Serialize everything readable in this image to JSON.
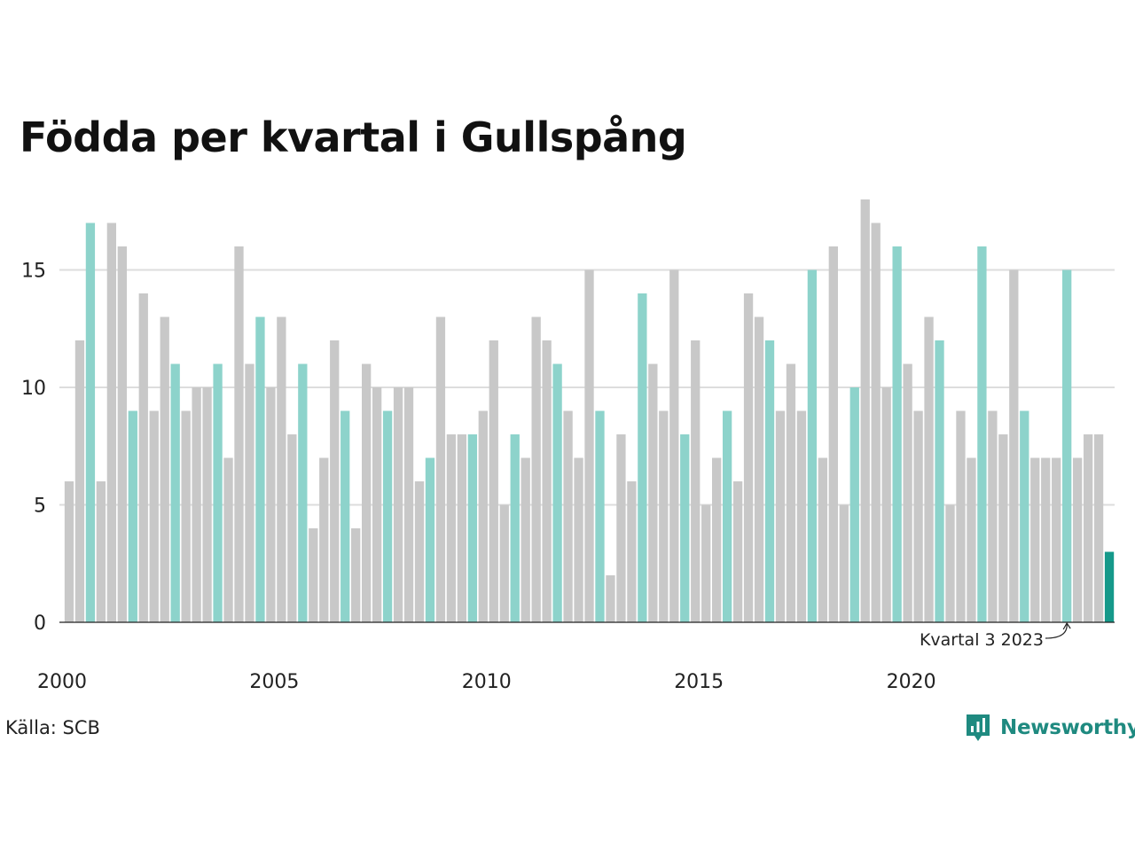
{
  "title": "Födda per kvartal i Gullspång",
  "source": "Källa: SCB",
  "brand": "Newsworthy",
  "colors": {
    "bar_default": "#c8c8c8",
    "bar_highlight": "#8dd3cb",
    "bar_latest": "#15998a",
    "grid": "#dddddd",
    "brand": "#1f8a80"
  },
  "chart_data": {
    "type": "bar",
    "ylim": [
      0,
      18
    ],
    "yticks": [
      0,
      5,
      10,
      15
    ],
    "xtick_labels": [
      "2000",
      "2005",
      "2010",
      "2015",
      "2020"
    ],
    "annotation": "Kvartal 3 2023",
    "highlight": "Kvartal 3 varje år",
    "categories": [
      "2000 Q1",
      "2000 Q2",
      "2000 Q3",
      "2000 Q4",
      "2001 Q1",
      "2001 Q2",
      "2001 Q3",
      "2001 Q4",
      "2002 Q1",
      "2002 Q2",
      "2002 Q3",
      "2002 Q4",
      "2003 Q1",
      "2003 Q2",
      "2003 Q3",
      "2003 Q4",
      "2004 Q1",
      "2004 Q2",
      "2004 Q3",
      "2004 Q4",
      "2005 Q1",
      "2005 Q2",
      "2005 Q3",
      "2005 Q4",
      "2006 Q1",
      "2006 Q2",
      "2006 Q3",
      "2006 Q4",
      "2007 Q1",
      "2007 Q2",
      "2007 Q3",
      "2007 Q4",
      "2008 Q1",
      "2008 Q2",
      "2008 Q3",
      "2008 Q4",
      "2009 Q1",
      "2009 Q2",
      "2009 Q3",
      "2009 Q4",
      "2010 Q1",
      "2010 Q2",
      "2010 Q3",
      "2010 Q4",
      "2011 Q1",
      "2011 Q2",
      "2011 Q3",
      "2011 Q4",
      "2012 Q1",
      "2012 Q2",
      "2012 Q3",
      "2012 Q4",
      "2013 Q1",
      "2013 Q2",
      "2013 Q3",
      "2013 Q4",
      "2014 Q1",
      "2014 Q2",
      "2014 Q3",
      "2014 Q4",
      "2015 Q1",
      "2015 Q2",
      "2015 Q3",
      "2015 Q4",
      "2016 Q1",
      "2016 Q2",
      "2016 Q3",
      "2016 Q4",
      "2017 Q1",
      "2017 Q2",
      "2017 Q3",
      "2017 Q4",
      "2018 Q1",
      "2018 Q2",
      "2018 Q3",
      "2018 Q4",
      "2019 Q1",
      "2019 Q2",
      "2019 Q3",
      "2019 Q4",
      "2020 Q1",
      "2020 Q2",
      "2020 Q3",
      "2020 Q4",
      "2021 Q1",
      "2021 Q2",
      "2021 Q3",
      "2021 Q4",
      "2022 Q1",
      "2022 Q2",
      "2022 Q3",
      "2022 Q4",
      "2023 Q1",
      "2023 Q2",
      "2023 Q3",
      "2023 Q4",
      "2024 Q1",
      "2024 Q2",
      "2024 Q3"
    ],
    "values": [
      6,
      12,
      17,
      6,
      17,
      16,
      9,
      14,
      9,
      13,
      11,
      9,
      10,
      10,
      11,
      7,
      16,
      11,
      13,
      10,
      13,
      8,
      11,
      4,
      7,
      12,
      9,
      4,
      11,
      10,
      9,
      10,
      10,
      6,
      7,
      13,
      8,
      8,
      8,
      9,
      12,
      5,
      8,
      7,
      13,
      12,
      11,
      9,
      7,
      15,
      9,
      2,
      8,
      6,
      14,
      11,
      9,
      15,
      8,
      12,
      5,
      7,
      9,
      6,
      14,
      13,
      12,
      9,
      11,
      9,
      15,
      7,
      16,
      5,
      10,
      18,
      17,
      10,
      16,
      11,
      9,
      13,
      12,
      5,
      9,
      7,
      16,
      9,
      8,
      15,
      9,
      7,
      7,
      7,
      15,
      7,
      8,
      8,
      3
    ]
  }
}
